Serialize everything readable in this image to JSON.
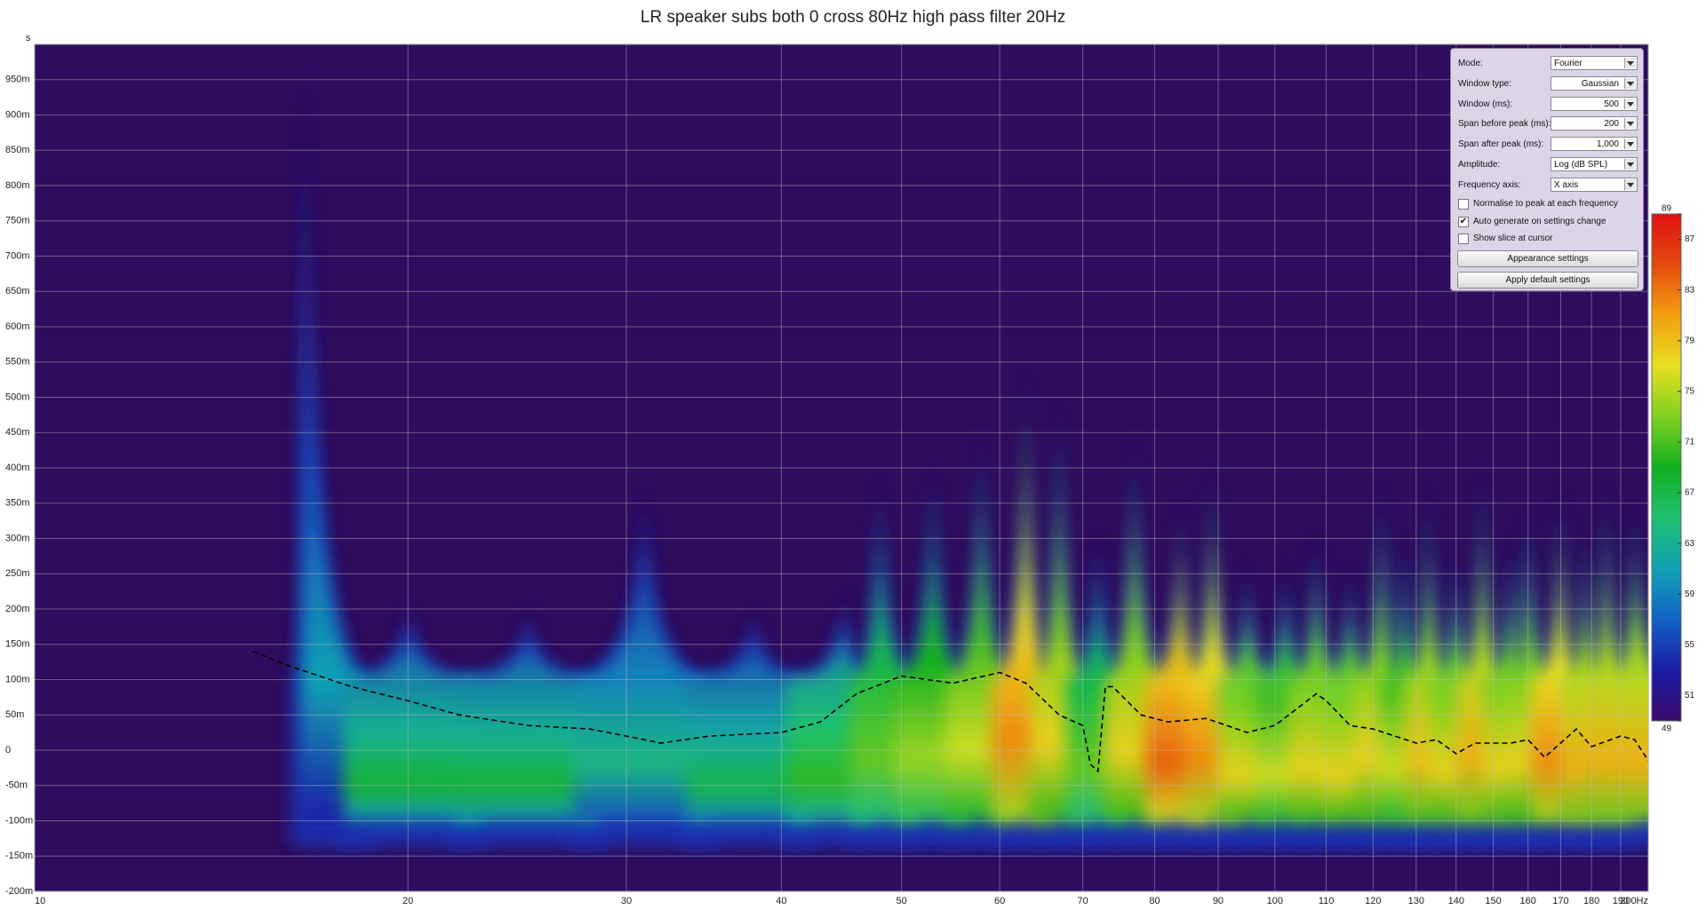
{
  "chart_data": {
    "type": "spectrogram",
    "title": "LR speaker subs both 0 cross 80Hz high pass filter 20Hz",
    "y_unit": "s",
    "background": "#2e0c5e",
    "grid": true,
    "x_scale": "log",
    "xlim": [
      10,
      200
    ],
    "xticks": [
      10,
      20,
      30,
      40,
      50,
      60,
      70,
      80,
      90,
      100,
      110,
      120,
      130,
      140,
      150,
      160,
      170,
      180,
      190,
      {
        "value": 200,
        "label": "200Hz"
      }
    ],
    "ylim": [
      -0.2,
      1.0
    ],
    "yticks": [
      {
        "value": -0.2,
        "label": "-200m"
      },
      {
        "value": -0.15,
        "label": "-150m"
      },
      {
        "value": -0.1,
        "label": "-100m"
      },
      {
        "value": -0.05,
        "label": "-50m"
      },
      0,
      {
        "value": 0.05,
        "label": "50m"
      },
      {
        "value": 0.1,
        "label": "100m"
      },
      {
        "value": 0.15,
        "label": "150m"
      },
      {
        "value": 0.2,
        "label": "200m"
      },
      {
        "value": 0.25,
        "label": "250m"
      },
      {
        "value": 0.3,
        "label": "300m"
      },
      {
        "value": 0.35,
        "label": "350m"
      },
      {
        "value": 0.4,
        "label": "400m"
      },
      {
        "value": 0.45,
        "label": "450m"
      },
      {
        "value": 0.5,
        "label": "500m"
      },
      {
        "value": 0.55,
        "label": "550m"
      },
      {
        "value": 0.6,
        "label": "600m"
      },
      {
        "value": 0.65,
        "label": "650m"
      },
      {
        "value": 0.7,
        "label": "700m"
      },
      {
        "value": 0.75,
        "label": "750m"
      },
      {
        "value": 0.8,
        "label": "800m"
      },
      {
        "value": 0.85,
        "label": "850m"
      },
      {
        "value": 0.9,
        "label": "900m"
      },
      {
        "value": 0.95,
        "label": "950m"
      }
    ],
    "zlim": [
      49,
      89
    ],
    "zticks": [
      49,
      51,
      55,
      59,
      63,
      67,
      71,
      75,
      79,
      83,
      87,
      89
    ],
    "colormap": [
      "#3a0a6a",
      "#1c1ca6",
      "#1262c4",
      "#10a2b4",
      "#1fc070",
      "#12b020",
      "#80d020",
      "#e6e020",
      "#f2a010",
      "#e44a10",
      "#e01010"
    ],
    "spectrogram": {
      "freq": [
        16.5,
        20,
        25,
        31,
        38,
        45,
        48,
        53,
        58,
        63,
        67,
        72,
        77,
        84,
        89,
        95,
        102,
        108,
        115,
        122,
        127,
        133,
        140,
        147,
        155,
        160,
        170,
        178,
        185,
        195
      ],
      "top": [
        1.0,
        0.18,
        0.17,
        0.35,
        0.17,
        0.2,
        0.38,
        0.4,
        0.45,
        0.55,
        0.5,
        0.3,
        0.44,
        0.35,
        0.4,
        0.25,
        0.25,
        0.3,
        0.25,
        0.38,
        0.3,
        0.37,
        0.28,
        0.4,
        0.3,
        0.35,
        0.37,
        0.32,
        0.38,
        0.35
      ],
      "level": [
        61,
        68,
        68,
        64,
        67,
        70,
        72,
        74,
        76,
        82,
        78,
        72,
        78,
        84,
        82,
        78,
        76,
        78,
        78,
        78,
        76,
        79,
        78,
        80,
        78,
        78,
        82,
        80,
        80,
        80
      ]
    },
    "x": [
      15,
      16,
      18,
      20,
      22,
      25,
      28,
      30,
      32,
      35,
      40,
      43,
      46,
      50,
      55,
      60,
      63,
      67,
      70,
      71,
      72,
      73,
      74,
      78,
      82,
      88,
      95,
      100,
      108,
      110,
      115,
      120,
      130,
      135,
      140,
      145,
      155,
      160,
      165,
      175,
      180,
      190,
      195,
      200
    ],
    "series": [
      {
        "color": "#000000",
        "values": [
          0.14,
          0.12,
          0.09,
          0.07,
          0.05,
          0.035,
          0.03,
          0.02,
          0.01,
          0.02,
          0.025,
          0.04,
          0.08,
          0.105,
          0.095,
          0.11,
          0.095,
          0.05,
          0.035,
          -0.02,
          -0.03,
          0.09,
          0.09,
          0.05,
          0.04,
          0.045,
          0.025,
          0.035,
          0.08,
          0.07,
          0.035,
          0.03,
          0.01,
          0.015,
          -0.005,
          0.01,
          0.01,
          0.015,
          -0.01,
          0.03,
          0.005,
          0.02,
          0.015,
          -0.015
        ]
      }
    ]
  },
  "panel": {
    "rows": [
      {
        "label": "Mode:",
        "value": "Fourier"
      },
      {
        "label": "Window type:",
        "value": "Gaussian"
      },
      {
        "label": "Window (ms):",
        "value": "500"
      },
      {
        "label": "Span before peak (ms):",
        "value": "200"
      },
      {
        "label": "Span after peak (ms):",
        "value": "1,000"
      },
      {
        "label": "Amplitude:",
        "value": "Log (dB SPL)"
      },
      {
        "label": "Frequency axis:",
        "value": "X axis"
      }
    ],
    "checks": [
      {
        "label": "Normalise to peak at each frequency",
        "checked": false
      },
      {
        "label": "Auto generate on settings change",
        "checked": true
      },
      {
        "label": "Show slice at cursor",
        "checked": false
      }
    ],
    "buttons": [
      "Appearance settings",
      "Apply default settings"
    ]
  }
}
